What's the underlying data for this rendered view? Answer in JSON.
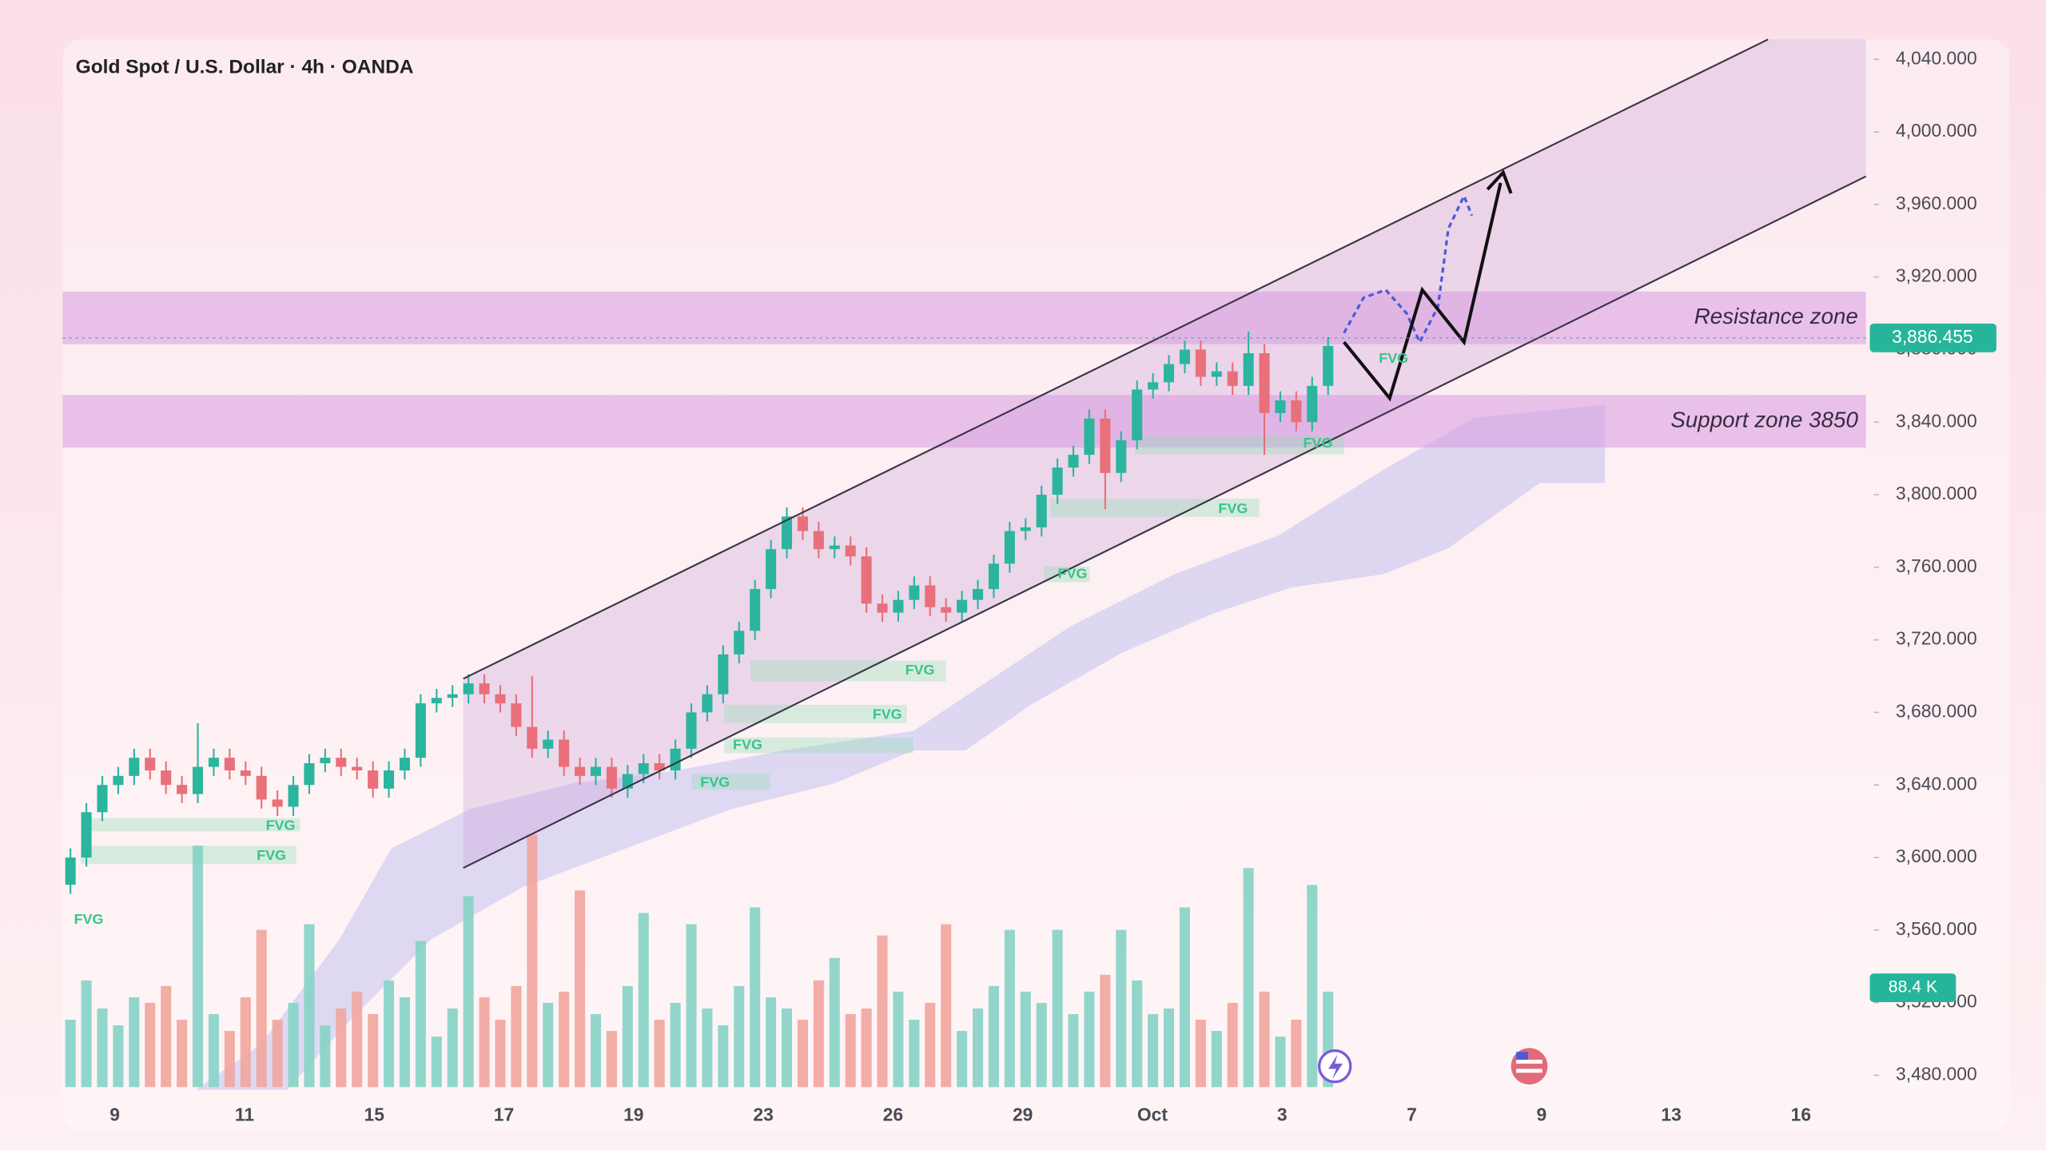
{
  "header": {
    "title": "Gold Spot / U.S. Dollar · 4h · OANDA"
  },
  "chart_data": {
    "type": "candlestick",
    "x_tick_labels": [
      "9",
      "11",
      "15",
      "17",
      "19",
      "23",
      "26",
      "29",
      "Oct",
      "3",
      "7",
      "9",
      "13",
      "16"
    ],
    "open": [
      3585,
      3600,
      3625,
      3640,
      3645,
      3655,
      3648,
      3640,
      3635,
      3650,
      3655,
      3648,
      3645,
      3632,
      3628,
      3640,
      3652,
      3655,
      3650,
      3648,
      3638,
      3648,
      3655,
      3685,
      3688,
      3690,
      3696,
      3690,
      3685,
      3672,
      3660,
      3665,
      3650,
      3645,
      3650,
      3638,
      3646,
      3652,
      3648,
      3660,
      3680,
      3690,
      3712,
      3725,
      3748,
      3770,
      3788,
      3780,
      3770,
      3772,
      3766,
      3740,
      3735,
      3742,
      3750,
      3738,
      3735,
      3742,
      3748,
      3762,
      3780,
      3782,
      3800,
      3815,
      3822,
      3842,
      3812,
      3830,
      3858,
      3862,
      3872,
      3880,
      3865,
      3868,
      3860,
      3878,
      3845,
      3852,
      3840,
      3860
    ],
    "high": [
      3605,
      3630,
      3645,
      3650,
      3660,
      3660,
      3653,
      3645,
      3674,
      3660,
      3660,
      3653,
      3650,
      3637,
      3645,
      3657,
      3660,
      3660,
      3655,
      3653,
      3653,
      3660,
      3690,
      3693,
      3695,
      3701,
      3701,
      3695,
      3690,
      3700,
      3670,
      3670,
      3655,
      3655,
      3655,
      3651,
      3657,
      3657,
      3665,
      3685,
      3695,
      3717,
      3730,
      3753,
      3775,
      3793,
      3793,
      3785,
      3777,
      3777,
      3771,
      3745,
      3747,
      3755,
      3755,
      3743,
      3747,
      3753,
      3767,
      3785,
      3787,
      3805,
      3820,
      3827,
      3847,
      3847,
      3835,
      3863,
      3867,
      3877,
      3885,
      3885,
      3873,
      3873,
      3890,
      3883,
      3857,
      3857,
      3865,
      3887
    ],
    "low": [
      3580,
      3595,
      3620,
      3635,
      3640,
      3643,
      3635,
      3630,
      3630,
      3645,
      3643,
      3640,
      3627,
      3623,
      3623,
      3635,
      3647,
      3645,
      3643,
      3633,
      3633,
      3643,
      3650,
      3680,
      3683,
      3685,
      3685,
      3680,
      3667,
      3655,
      3655,
      3645,
      3640,
      3640,
      3633,
      3633,
      3641,
      3643,
      3643,
      3655,
      3675,
      3685,
      3707,
      3720,
      3743,
      3765,
      3775,
      3765,
      3765,
      3761,
      3735,
      3730,
      3730,
      3737,
      3733,
      3730,
      3730,
      3737,
      3743,
      3757,
      3775,
      3777,
      3795,
      3810,
      3817,
      3792,
      3807,
      3825,
      3853,
      3857,
      3867,
      3860,
      3860,
      3855,
      3855,
      3822,
      3840,
      3835,
      3835,
      3855
    ],
    "close": [
      3600,
      3625,
      3640,
      3645,
      3655,
      3648,
      3640,
      3635,
      3650,
      3655,
      3648,
      3645,
      3632,
      3628,
      3640,
      3652,
      3655,
      3650,
      3648,
      3638,
      3648,
      3655,
      3685,
      3688,
      3690,
      3696,
      3690,
      3685,
      3672,
      3660,
      3665,
      3650,
      3645,
      3650,
      3638,
      3646,
      3652,
      3648,
      3660,
      3680,
      3690,
      3712,
      3725,
      3748,
      3770,
      3788,
      3780,
      3770,
      3772,
      3766,
      3740,
      3735,
      3742,
      3750,
      3738,
      3735,
      3742,
      3748,
      3762,
      3780,
      3782,
      3800,
      3815,
      3822,
      3842,
      3812,
      3830,
      3858,
      3862,
      3872,
      3880,
      3865,
      3868,
      3860,
      3878,
      3845,
      3852,
      3840,
      3860,
      3882
    ],
    "up_color": "#2bb59f",
    "down_color": "#e8707a",
    "volume": {
      "values": [
        60,
        95,
        70,
        55,
        80,
        75,
        90,
        60,
        215,
        65,
        50,
        80,
        140,
        60,
        75,
        145,
        55,
        70,
        85,
        65,
        95,
        80,
        130,
        45,
        70,
        170,
        80,
        60,
        90,
        225,
        75,
        85,
        175,
        65,
        50,
        90,
        155,
        60,
        75,
        145,
        70,
        55,
        90,
        160,
        80,
        70,
        60,
        95,
        115,
        65,
        70,
        135,
        85,
        60,
        75,
        145,
        50,
        70,
        90,
        140,
        85,
        75,
        140,
        65,
        85,
        100,
        140,
        95,
        65,
        70,
        160,
        60,
        50,
        75,
        195,
        85,
        45,
        60,
        180,
        85
      ],
      "ylim": [
        0,
        230
      ],
      "up_color": "#86d3c6",
      "down_color": "#f1a59d",
      "last_label": {
        "value": 88.4,
        "label": "88.4 K"
      }
    },
    "ylim": [
      3472,
      4051
    ],
    "yticks": [
      {
        "value": 3480,
        "label": "3,480.000"
      },
      {
        "value": 3520,
        "label": "3,520.000"
      },
      {
        "value": 3560,
        "label": "3,560.000"
      },
      {
        "value": 3600,
        "label": "3,600.000"
      },
      {
        "value": 3640,
        "label": "3,640.000"
      },
      {
        "value": 3680,
        "label": "3,680.000"
      },
      {
        "value": 3720,
        "label": "3,720.000"
      },
      {
        "value": 3760,
        "label": "3,760.000"
      },
      {
        "value": 3800,
        "label": "3,800.000"
      },
      {
        "value": 3840,
        "label": "3,840.000"
      },
      {
        "value": 3880,
        "label": "3,880.000"
      },
      {
        "value": 3920,
        "label": "3,920.000"
      },
      {
        "value": 3960,
        "label": "3,960.000"
      },
      {
        "value": 4000,
        "label": "4,000.000"
      },
      {
        "value": 4040,
        "label": "4,040.000"
      }
    ],
    "last_price": {
      "value": 3886.455,
      "label": "3,886.455"
    },
    "zones": [
      {
        "label": "Resistance zone",
        "from": 3883,
        "to": 3912
      },
      {
        "label": "Support zone 3850",
        "from": 3826,
        "to": 3855
      }
    ],
    "annotations": [
      "FVG",
      "FVG",
      "FVG",
      "FVG",
      "FVG",
      "FVG",
      "FVG",
      "FVG",
      "FVG",
      "FVG",
      "FVG"
    ]
  }
}
